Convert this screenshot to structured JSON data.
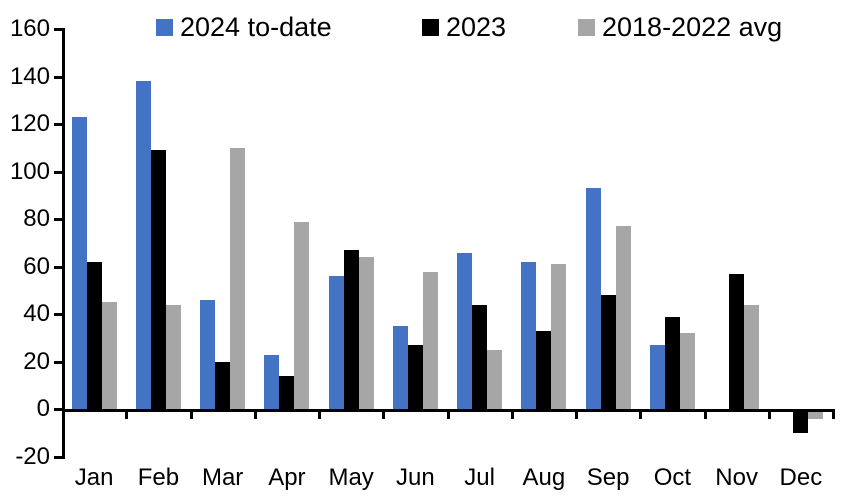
{
  "chart_data": {
    "type": "bar",
    "title": "",
    "xlabel": "",
    "ylabel": "",
    "categories": [
      "Jan",
      "Feb",
      "Mar",
      "Apr",
      "May",
      "Jun",
      "Jul",
      "Aug",
      "Sep",
      "Oct",
      "Nov",
      "Dec"
    ],
    "series": [
      {
        "name": "2024 to-date",
        "color": "#4472C4",
        "values": [
          123,
          138,
          46,
          23,
          56,
          35,
          66,
          62,
          93,
          27,
          null,
          null
        ]
      },
      {
        "name": "2023",
        "color": "#000000",
        "values": [
          62,
          109,
          20,
          14,
          67,
          27,
          44,
          33,
          48,
          39,
          57,
          -10
        ]
      },
      {
        "name": "2018-2022 avg",
        "color": "#A6A6A6",
        "values": [
          45,
          44,
          110,
          79,
          64,
          58,
          25,
          61,
          77,
          32,
          44,
          -4
        ]
      }
    ],
    "ylim": [
      -20,
      160
    ],
    "ytick_step": 20,
    "grid": false,
    "legend_position": "top",
    "axis_color": "#000000",
    "background_color": "#FFFFFF"
  }
}
